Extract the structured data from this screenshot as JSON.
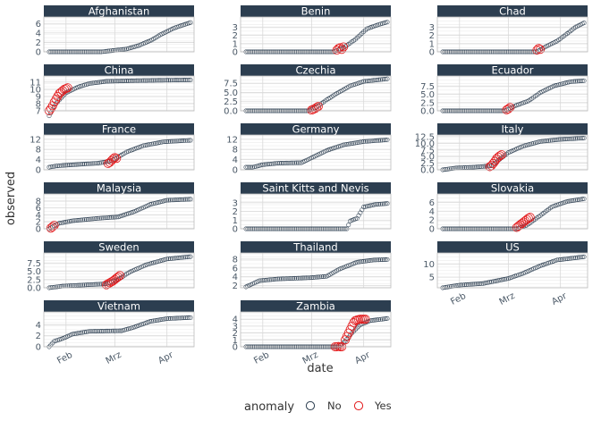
{
  "chart_data": {
    "type": "scatter",
    "title": "",
    "xlabel": "date",
    "ylabel": "observed",
    "x_ticks": [
      "Feb",
      "Mrz",
      "Apr"
    ],
    "legend": {
      "title": "anomaly",
      "position": "bottom",
      "entries": [
        {
          "label": "No",
          "color": "#2c3e50"
        },
        {
          "label": "Yes",
          "color": "#e31a1c"
        }
      ]
    },
    "colors": {
      "strip": "#2c3e50",
      "normal": "#2c3e50",
      "anomaly": "#e31a1c",
      "grid": "#d9d9d9"
    },
    "x_date_range": [
      "2020-01-22",
      "2020-04-15"
    ],
    "panels": [
      {
        "name": "Afghanistan",
        "ylim": [
          0,
          7
        ],
        "yticks": [
          "0",
          "2",
          "4",
          "6"
        ],
        "curve": [
          [
            "01-22",
            0
          ],
          [
            "02-22",
            0
          ],
          [
            "03-08",
            0.6
          ],
          [
            "03-15",
            1.3
          ],
          [
            "03-23",
            2.5
          ],
          [
            "03-28",
            3.6
          ],
          [
            "04-05",
            5
          ],
          [
            "04-15",
            6.2
          ]
        ],
        "anomalies": []
      },
      {
        "name": "Benin",
        "ylim": [
          0,
          4
        ],
        "yticks": [
          "0",
          "1",
          "2",
          "3"
        ],
        "curve": [
          [
            "01-22",
            0
          ],
          [
            "03-14",
            0
          ],
          [
            "03-20",
            0.5
          ],
          [
            "03-27",
            1.5
          ],
          [
            "04-03",
            2.8
          ],
          [
            "04-10",
            3.3
          ],
          [
            "04-15",
            3.6
          ]
        ],
        "anomalies": [
          [
            "03-16",
            0.2
          ],
          [
            "03-17",
            0.4
          ],
          [
            "03-18",
            0.5
          ],
          [
            "03-19",
            0.3
          ],
          [
            "03-20",
            0.6
          ]
        ]
      },
      {
        "name": "Chad",
        "ylim": [
          0,
          4
        ],
        "yticks": [
          "0",
          "1",
          "2",
          "3"
        ],
        "curve": [
          [
            "01-22",
            0
          ],
          [
            "03-18",
            0
          ],
          [
            "03-23",
            0.6
          ],
          [
            "03-30",
            1.3
          ],
          [
            "04-05",
            2.2
          ],
          [
            "04-10",
            3
          ],
          [
            "04-15",
            3.5
          ]
        ],
        "anomalies": [
          [
            "03-18",
            0.2
          ],
          [
            "03-19",
            0.4
          ],
          [
            "03-20",
            0.3
          ]
        ]
      },
      {
        "name": "China",
        "ylim": [
          7,
          11.6
        ],
        "yticks": [
          "7",
          "8",
          "9",
          "10",
          "11"
        ],
        "curve": [
          [
            "01-22",
            6.3
          ],
          [
            "01-26",
            8
          ],
          [
            "02-01",
            9.5
          ],
          [
            "02-08",
            10.3
          ],
          [
            "02-15",
            10.8
          ],
          [
            "02-25",
            11.1
          ],
          [
            "03-15",
            11.2
          ],
          [
            "04-15",
            11.3
          ]
        ],
        "anomalies": [
          [
            "01-22",
            7.0
          ],
          [
            "01-23",
            7.3
          ],
          [
            "01-24",
            7.7
          ],
          [
            "01-25",
            8.2
          ],
          [
            "01-26",
            8.6
          ],
          [
            "01-27",
            9.0
          ],
          [
            "01-28",
            9.4
          ],
          [
            "01-29",
            9.6
          ],
          [
            "01-30",
            9.8
          ],
          [
            "01-31",
            10.0
          ],
          [
            "02-01",
            10.1
          ],
          [
            "02-02",
            10.2
          ]
        ]
      },
      {
        "name": "Czechia",
        "ylim": [
          0,
          9
        ],
        "yticks": [
          "0.0",
          "2.5",
          "5.0",
          "7.5"
        ],
        "curve": [
          [
            "01-22",
            0
          ],
          [
            "02-28",
            0
          ],
          [
            "03-04",
            1
          ],
          [
            "03-10",
            3
          ],
          [
            "03-17",
            5
          ],
          [
            "03-24",
            6.8
          ],
          [
            "04-01",
            8
          ],
          [
            "04-15",
            8.7
          ]
        ],
        "anomalies": [
          [
            "03-01",
            0.2
          ],
          [
            "03-02",
            0.4
          ],
          [
            "03-03",
            0.6
          ],
          [
            "03-04",
            0.9
          ],
          [
            "03-05",
            1.2
          ]
        ]
      },
      {
        "name": "Ecuador",
        "ylim": [
          0,
          10
        ],
        "yticks": [
          "0.0",
          "2.5",
          "5.0",
          "7.5"
        ],
        "curve": [
          [
            "01-22",
            0
          ],
          [
            "02-28",
            0
          ],
          [
            "03-05",
            1.5
          ],
          [
            "03-13",
            3
          ],
          [
            "03-20",
            5.5
          ],
          [
            "03-28",
            7.5
          ],
          [
            "04-07",
            8.8
          ],
          [
            "04-15",
            9.1
          ]
        ],
        "anomalies": [
          [
            "02-29",
            0.3
          ],
          [
            "03-01",
            0.6
          ],
          [
            "03-02",
            1.0
          ]
        ]
      },
      {
        "name": "France",
        "ylim": [
          0,
          13
        ],
        "yticks": [
          "0",
          "4",
          "8",
          "12"
        ],
        "curve": [
          [
            "01-22",
            1
          ],
          [
            "01-26",
            1.5
          ],
          [
            "02-01",
            1.8
          ],
          [
            "02-10",
            2.2
          ],
          [
            "02-20",
            2.6
          ],
          [
            "02-28",
            3.5
          ],
          [
            "03-08",
            7
          ],
          [
            "03-18",
            9.5
          ],
          [
            "03-30",
            11
          ],
          [
            "04-15",
            11.6
          ]
        ],
        "anomalies": [
          [
            "02-26",
            2.5
          ],
          [
            "02-27",
            2.9
          ],
          [
            "02-28",
            3.6
          ],
          [
            "02-29",
            4.3
          ],
          [
            "03-01",
            4.8
          ],
          [
            "03-02",
            4.5
          ]
        ]
      },
      {
        "name": "Germany",
        "ylim": [
          0,
          13
        ],
        "yticks": [
          "0",
          "4",
          "8",
          "12"
        ],
        "curve": [
          [
            "01-26",
            1
          ],
          [
            "02-01",
            2
          ],
          [
            "02-10",
            2.6
          ],
          [
            "02-24",
            2.8
          ],
          [
            "03-02",
            5
          ],
          [
            "03-10",
            7.6
          ],
          [
            "03-20",
            9.8
          ],
          [
            "04-01",
            11.1
          ],
          [
            "04-15",
            11.8
          ]
        ],
        "anomalies": []
      },
      {
        "name": "Italy",
        "ylim": [
          0,
          12.5
        ],
        "yticks": [
          "0.0",
          "2.5",
          "5.0",
          "7.5",
          "10.0",
          "12.5"
        ],
        "curve": [
          [
            "01-22",
            0
          ],
          [
            "01-30",
            0.7
          ],
          [
            "02-10",
            1
          ],
          [
            "02-20",
            1.5
          ],
          [
            "02-24",
            3.5
          ],
          [
            "03-01",
            6.5
          ],
          [
            "03-10",
            9
          ],
          [
            "03-20",
            10.7
          ],
          [
            "04-01",
            11.5
          ],
          [
            "04-15",
            12
          ]
        ],
        "anomalies": [
          [
            "02-19",
            1.2
          ],
          [
            "02-20",
            1.6
          ],
          [
            "02-21",
            2.4
          ],
          [
            "02-22",
            3.2
          ],
          [
            "02-23",
            4.2
          ],
          [
            "02-24",
            4.8
          ],
          [
            "02-25",
            5.3
          ],
          [
            "02-26",
            5.7
          ]
        ]
      },
      {
        "name": "Malaysia",
        "ylim": [
          0,
          9.5
        ],
        "yticks": [
          "0",
          "2",
          "4",
          "6",
          "8"
        ],
        "curve": [
          [
            "01-22",
            0
          ],
          [
            "01-28",
            1.6
          ],
          [
            "02-05",
            2.3
          ],
          [
            "02-20",
            3
          ],
          [
            "03-03",
            3.4
          ],
          [
            "03-13",
            5
          ],
          [
            "03-22",
            7
          ],
          [
            "04-01",
            8.2
          ],
          [
            "04-15",
            8.5
          ]
        ],
        "anomalies": [
          [
            "01-23",
            0.2
          ],
          [
            "01-24",
            0.6
          ],
          [
            "01-25",
            1.0
          ]
        ]
      },
      {
        "name": "Saint Kitts and Nevis",
        "ylim": [
          0,
          3.8
        ],
        "yticks": [
          "0",
          "1",
          "2",
          "3"
        ],
        "curve": [
          [
            "01-22",
            0
          ],
          [
            "03-22",
            0
          ],
          [
            "03-24",
            0.9
          ],
          [
            "03-28",
            1.2
          ],
          [
            "04-01",
            2.5
          ],
          [
            "04-08",
            2.8
          ],
          [
            "04-15",
            2.9
          ]
        ],
        "anomalies": []
      },
      {
        "name": "Slovakia",
        "ylim": [
          0,
          7.5
        ],
        "yticks": [
          "0",
          "2",
          "4",
          "6"
        ],
        "curve": [
          [
            "01-22",
            0
          ],
          [
            "03-06",
            0
          ],
          [
            "03-12",
            0.8
          ],
          [
            "03-20",
            3
          ],
          [
            "03-27",
            5
          ],
          [
            "04-05",
            6.2
          ],
          [
            "04-15",
            6.8
          ]
        ],
        "anomalies": [
          [
            "03-06",
            0.3
          ],
          [
            "03-07",
            0.6
          ],
          [
            "03-08",
            0.9
          ],
          [
            "03-09",
            1.2
          ],
          [
            "03-10",
            1.5
          ],
          [
            "03-11",
            1.8
          ],
          [
            "03-12",
            2.1
          ],
          [
            "03-13",
            2.4
          ],
          [
            "03-14",
            2.6
          ]
        ]
      },
      {
        "name": "Sweden",
        "ylim": [
          0,
          10
        ],
        "yticks": [
          "0.0",
          "2.5",
          "5.0",
          "7.5"
        ],
        "curve": [
          [
            "01-22",
            0
          ],
          [
            "01-30",
            0.5
          ],
          [
            "02-10",
            0.8
          ],
          [
            "02-25",
            1.2
          ],
          [
            "03-03",
            2.5
          ],
          [
            "03-10",
            4.8
          ],
          [
            "03-20",
            7
          ],
          [
            "04-01",
            8.7
          ],
          [
            "04-15",
            9.4
          ]
        ],
        "anomalies": [
          [
            "02-25",
            0.9
          ],
          [
            "02-26",
            1.2
          ],
          [
            "02-27",
            1.5
          ],
          [
            "02-28",
            1.8
          ],
          [
            "02-29",
            2.1
          ],
          [
            "03-01",
            2.5
          ],
          [
            "03-02",
            2.9
          ],
          [
            "03-03",
            3.3
          ],
          [
            "03-04",
            3.7
          ]
        ]
      },
      {
        "name": "Thailand",
        "ylim": [
          1.5,
          9
        ],
        "yticks": [
          "2",
          "4",
          "6",
          "8"
        ],
        "curve": [
          [
            "01-22",
            1.7
          ],
          [
            "01-30",
            3.1
          ],
          [
            "02-10",
            3.5
          ],
          [
            "03-01",
            3.8
          ],
          [
            "03-10",
            4.1
          ],
          [
            "03-18",
            5.8
          ],
          [
            "03-28",
            7.3
          ],
          [
            "04-07",
            7.8
          ],
          [
            "04-15",
            7.9
          ]
        ],
        "anomalies": []
      },
      {
        "name": "US",
        "ylim": [
          1,
          13.5
        ],
        "yticks": [
          "5",
          "10"
        ],
        "curve": [
          [
            "01-22",
            1
          ],
          [
            "02-01",
            2
          ],
          [
            "02-15",
            2.6
          ],
          [
            "03-01",
            4.5
          ],
          [
            "03-10",
            6.5
          ],
          [
            "03-20",
            9.3
          ],
          [
            "03-30",
            11.5
          ],
          [
            "04-15",
            12.7
          ]
        ],
        "anomalies": []
      },
      {
        "name": "Vietnam",
        "ylim": [
          0,
          6
        ],
        "yticks": [
          "0",
          "2",
          "4"
        ],
        "curve": [
          [
            "01-22",
            0
          ],
          [
            "01-25",
            1
          ],
          [
            "01-30",
            1.5
          ],
          [
            "02-05",
            2.3
          ],
          [
            "02-15",
            2.8
          ],
          [
            "03-05",
            2.9
          ],
          [
            "03-12",
            3.5
          ],
          [
            "03-22",
            4.6
          ],
          [
            "04-01",
            5.1
          ],
          [
            "04-15",
            5.3
          ]
        ],
        "anomalies": []
      },
      {
        "name": "Zambia",
        "ylim": [
          0,
          4.8
        ],
        "yticks": [
          "0",
          "1",
          "2",
          "3",
          "4"
        ],
        "curve": [
          [
            "01-22",
            0
          ],
          [
            "03-17",
            0
          ],
          [
            "03-21",
            0.8
          ],
          [
            "03-25",
            2
          ],
          [
            "03-30",
            3.2
          ],
          [
            "04-05",
            3.8
          ],
          [
            "04-15",
            4.1
          ]
        ],
        "anomalies": [
          [
            "03-15",
            0
          ],
          [
            "03-16",
            0
          ],
          [
            "03-17",
            0.05
          ],
          [
            "03-18",
            0
          ],
          [
            "03-19",
            0
          ],
          [
            "03-21",
            1.0
          ],
          [
            "03-22",
            1.5
          ],
          [
            "03-23",
            2.0
          ],
          [
            "03-24",
            2.5
          ],
          [
            "03-25",
            3.0
          ],
          [
            "03-26",
            3.5
          ],
          [
            "03-27",
            3.8
          ],
          [
            "03-28",
            3.9
          ],
          [
            "03-29",
            3.95
          ],
          [
            "03-30",
            4.0
          ],
          [
            "03-31",
            4.0
          ],
          [
            "04-01",
            4.0
          ],
          [
            "04-02",
            4.0
          ]
        ]
      }
    ]
  }
}
